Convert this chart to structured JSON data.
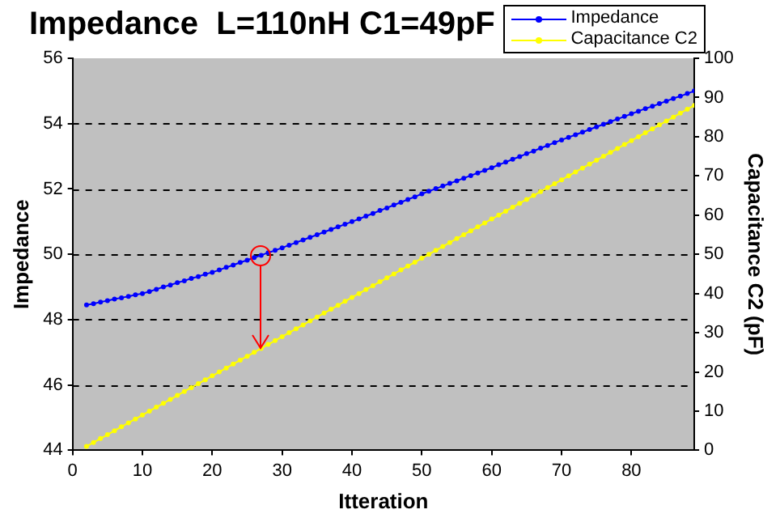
{
  "chart_data": {
    "type": "line",
    "title": "Impedance  L=110nH C1=49pF",
    "xlabel": "Itteration",
    "ylabel": "Impedance",
    "y2label": "Capacitance C2 (pF)",
    "x": [
      2,
      3,
      4,
      5,
      6,
      7,
      8,
      9,
      10,
      11,
      12,
      13,
      14,
      15,
      16,
      17,
      18,
      19,
      20,
      21,
      22,
      23,
      24,
      25,
      26,
      27,
      28,
      29,
      30,
      31,
      32,
      33,
      34,
      35,
      36,
      37,
      38,
      39,
      40,
      41,
      42,
      43,
      44,
      45,
      46,
      47,
      48,
      49,
      50,
      51,
      52,
      53,
      54,
      55,
      56,
      57,
      58,
      59,
      60,
      61,
      62,
      63,
      64,
      65,
      66,
      67,
      68,
      69,
      70,
      71,
      72,
      73,
      74,
      75,
      76,
      77,
      78,
      79,
      80,
      81,
      82,
      83,
      84,
      85,
      86,
      87,
      88,
      89
    ],
    "series": [
      {
        "name": "Impedance",
        "color": "#0000ff",
        "values": [
          48.45,
          48.49,
          48.54,
          48.58,
          48.63,
          48.67,
          48.71,
          48.76,
          48.8,
          48.86,
          48.93,
          49.0,
          49.06,
          49.13,
          49.19,
          49.26,
          49.32,
          49.39,
          49.45,
          49.52,
          49.6,
          49.67,
          49.75,
          49.82,
          49.9,
          49.97,
          50.05,
          50.12,
          50.2,
          50.28,
          50.36,
          50.44,
          50.52,
          50.6,
          50.68,
          50.76,
          50.84,
          50.92,
          51.0,
          51.08,
          51.17,
          51.25,
          51.34,
          51.42,
          51.51,
          51.59,
          51.68,
          51.76,
          51.85,
          51.93,
          52.01,
          52.09,
          52.17,
          52.25,
          52.33,
          52.41,
          52.49,
          52.57,
          52.65,
          52.74,
          52.82,
          52.91,
          52.99,
          53.08,
          53.16,
          53.25,
          53.33,
          53.42,
          53.5,
          53.58,
          53.66,
          53.74,
          53.82,
          53.9,
          53.98,
          54.06,
          54.14,
          54.22,
          54.3,
          54.38,
          54.46,
          54.53,
          54.61,
          54.69,
          54.77,
          54.84,
          54.92,
          55.0
        ]
      },
      {
        "name": "Capacitance C2",
        "color": "#ffff00",
        "axis": "y2",
        "values": [
          1,
          2,
          3,
          4,
          5,
          6,
          7,
          8,
          9,
          10,
          11,
          12,
          13,
          14,
          15,
          16,
          17,
          18,
          19,
          20,
          21,
          22,
          23,
          24,
          25,
          26,
          27,
          28,
          29,
          30,
          31,
          32,
          33,
          34,
          35,
          36,
          37,
          38,
          39,
          40,
          41,
          42,
          43,
          44,
          45,
          46,
          47,
          48,
          49,
          50,
          51,
          52,
          53,
          54,
          55,
          56,
          57,
          58,
          59,
          60,
          61,
          62,
          63,
          64,
          65,
          66,
          67,
          68,
          69,
          70,
          71,
          72,
          73,
          74,
          75,
          76,
          77,
          78,
          79,
          80,
          81,
          82,
          83,
          84,
          85,
          86,
          87,
          88
        ]
      }
    ],
    "xlim": [
      0,
      89
    ],
    "xticks": [
      0,
      10,
      20,
      30,
      40,
      50,
      60,
      70,
      80
    ],
    "ylim": [
      44,
      56
    ],
    "yticks": [
      44,
      46,
      48,
      50,
      52,
      54,
      56
    ],
    "y2lim": [
      0,
      100
    ],
    "y2ticks": [
      0,
      10,
      20,
      30,
      40,
      50,
      60,
      70,
      80,
      90,
      100
    ],
    "grid": "y",
    "legend": "top right",
    "marker": "circle",
    "line_style": "solid"
  }
}
